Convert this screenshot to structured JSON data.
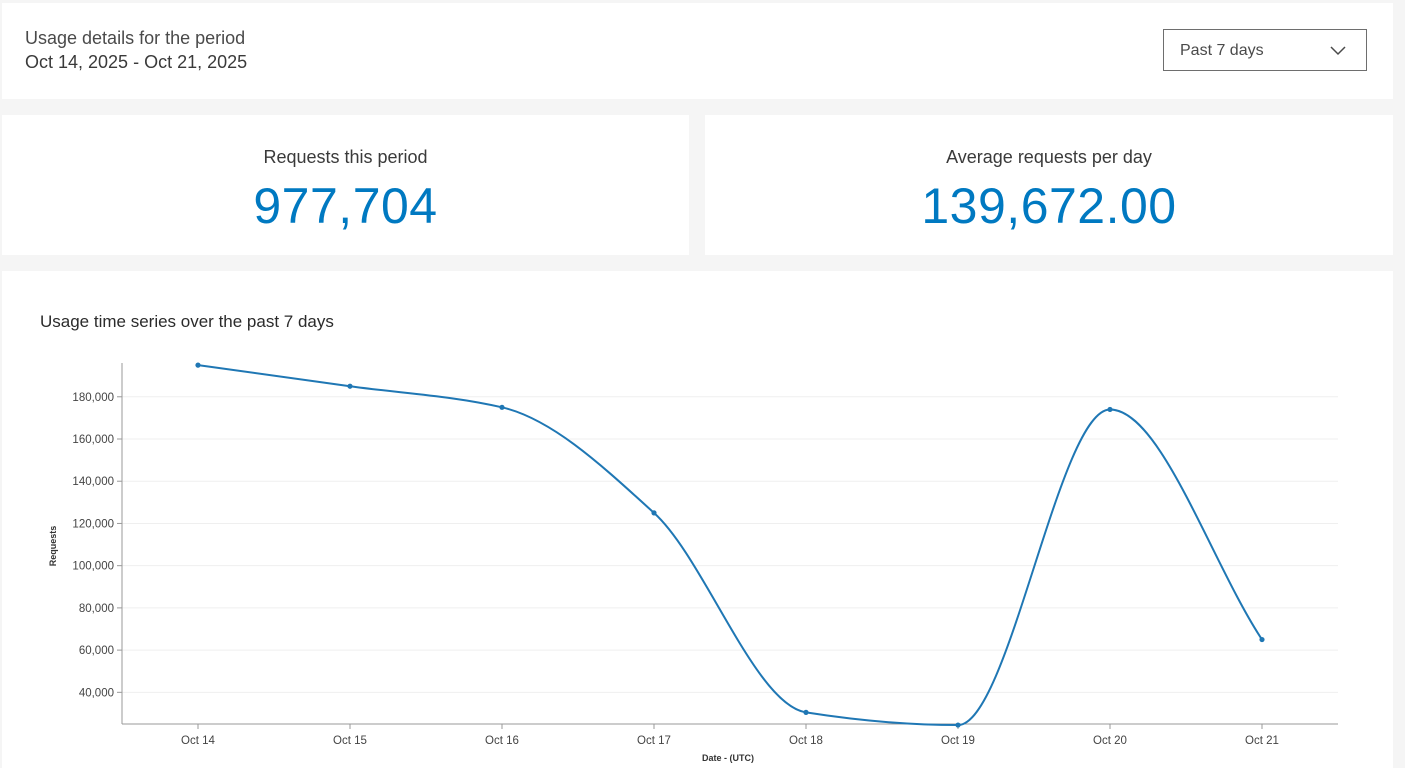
{
  "header": {
    "period_label": "Usage details for the period",
    "period_range": "Oct 14, 2025 - Oct 21, 2025",
    "period_select": {
      "selected": "Past 7 days",
      "icon": "chevron-down-icon"
    }
  },
  "stats": {
    "requests": {
      "label": "Requests this period",
      "value": "977,704"
    },
    "average": {
      "label": "Average requests per day",
      "value": "139,672.00"
    }
  },
  "colors": {
    "accent": "#0079c1",
    "line": "#1f77b4"
  },
  "chart_data": {
    "type": "line",
    "title": "Usage time series over the past 7 days",
    "xlabel": "Date - (UTC)",
    "ylabel": "Requests",
    "categories": [
      "Oct 14",
      "Oct 15",
      "Oct 16",
      "Oct 17",
      "Oct 18",
      "Oct 19",
      "Oct 20",
      "Oct 21"
    ],
    "series": [
      {
        "values": [
          195000,
          185000,
          175000,
          125000,
          30500,
          24500,
          174000,
          65000
        ]
      }
    ],
    "yticks": [
      40000,
      60000,
      80000,
      100000,
      120000,
      140000,
      160000,
      180000
    ],
    "ytick_labels": [
      "40,000",
      "60,000",
      "80,000",
      "100,000",
      "120,000",
      "140,000",
      "160,000",
      "180,000"
    ],
    "ylim": [
      25000,
      196000
    ],
    "grid": true,
    "smooth": true
  }
}
